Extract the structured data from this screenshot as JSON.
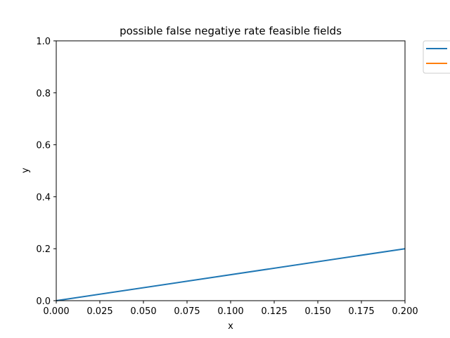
{
  "chart_data": {
    "type": "line",
    "title": "possible false negatiye rate feasible fields",
    "xlabel": "x",
    "ylabel": "y",
    "xlim": [
      0.0,
      0.2
    ],
    "ylim": [
      0.0,
      1.0
    ],
    "xticks": [
      0.0,
      0.025,
      0.05,
      0.075,
      0.1,
      0.125,
      0.15,
      0.175,
      0.2
    ],
    "xtick_labels": [
      "0.000",
      "0.025",
      "0.050",
      "0.075",
      "0.100",
      "0.125",
      "0.150",
      "0.175",
      "0.200"
    ],
    "yticks": [
      0.0,
      0.2,
      0.4,
      0.6,
      0.8,
      1.0
    ],
    "ytick_labels": [
      "0.0",
      "0.2",
      "0.4",
      "0.6",
      "0.8",
      "1.0"
    ],
    "grid": false,
    "legend_position": "outside top-right",
    "series": [
      {
        "x": [
          0.0,
          0.2
        ],
        "y": [
          0.0,
          0.2
        ],
        "color": "#1f77b4"
      },
      {
        "x": [],
        "y": [],
        "color": "#ff7f0e"
      }
    ]
  }
}
